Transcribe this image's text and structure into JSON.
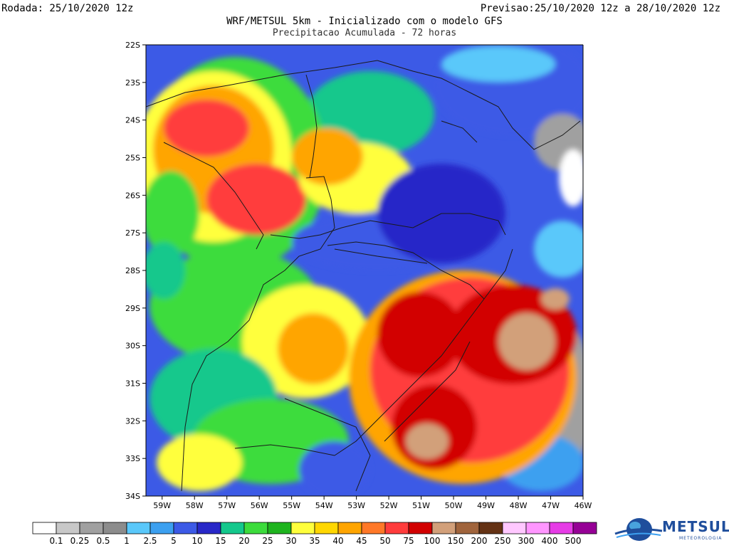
{
  "header": {
    "run_label": "Rodada: 25/10/2020 12z",
    "forecast_label": "Previsao:25/10/2020 12z a 28/10/2020 12z",
    "title": "WRF/METSUL 5km - Inicializado com o modelo GFS",
    "subtitle": "Precipitacao Acumulada - 72 horas"
  },
  "map": {
    "lat_labels": [
      "22S",
      "23S",
      "24S",
      "25S",
      "26S",
      "27S",
      "28S",
      "29S",
      "30S",
      "31S",
      "32S",
      "33S",
      "34S"
    ],
    "lon_labels": [
      "59W",
      "58W",
      "57W",
      "56W",
      "55W",
      "54W",
      "53W",
      "52W",
      "51W",
      "50W",
      "49W",
      "48W",
      "47W",
      "46W"
    ],
    "lat_range": [
      -34,
      -22
    ],
    "lon_range": [
      -59.5,
      -46
    ]
  },
  "legend": {
    "values": [
      "0.1",
      "0.25",
      "0.5",
      "1",
      "2.5",
      "5",
      "10",
      "15",
      "20",
      "25",
      "30",
      "35",
      "40",
      "45",
      "50",
      "75",
      "100",
      "150",
      "200",
      "250",
      "300",
      "400",
      "500"
    ],
    "colors": [
      "#ffffff",
      "#c8c8c8",
      "#a0a0a0",
      "#8c8c8c",
      "#5ac8fa",
      "#3ca0f0",
      "#3c5ae6",
      "#2828c8",
      "#14c88c",
      "#3cdc3c",
      "#1eb41e",
      "#ffff3c",
      "#ffd700",
      "#ffa500",
      "#ff7828",
      "#ff3c3c",
      "#d20000",
      "#d2a07a",
      "#a0643c",
      "#643214",
      "#ffc8ff",
      "#ff96ff",
      "#e63ce6",
      "#960096"
    ]
  },
  "brand": {
    "name": "METSUL",
    "tagline": "METEOROLOGIA",
    "color": "#1f4e9c"
  }
}
